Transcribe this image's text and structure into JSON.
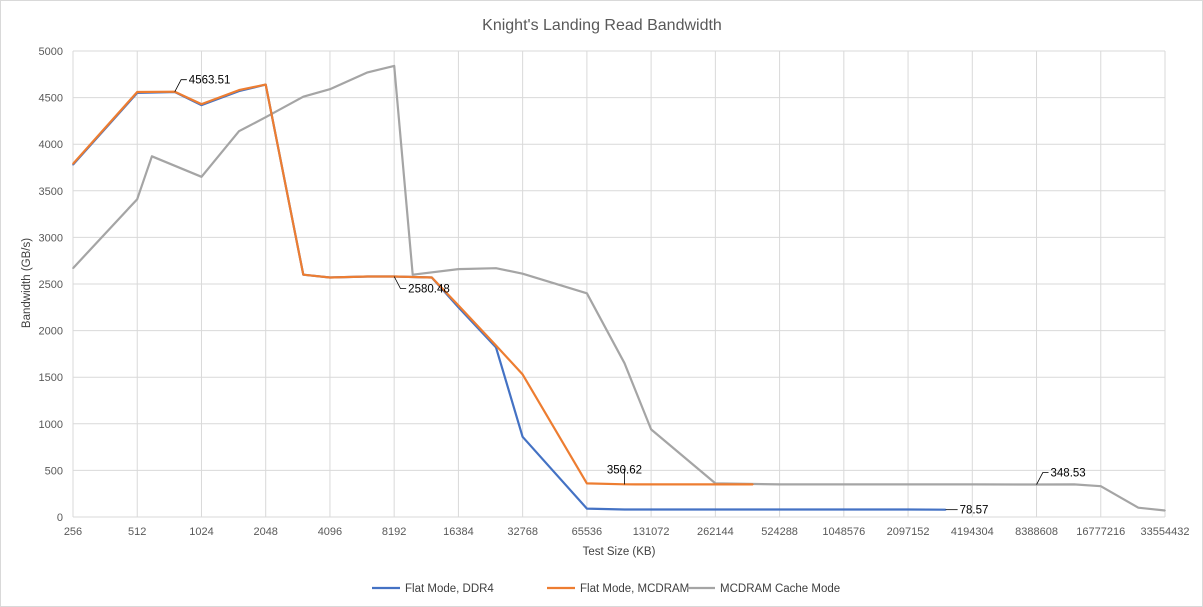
{
  "chart_data": {
    "type": "line",
    "title": "Knight's Landing Read Bandwidth",
    "xlabel": "Test Size (KB)",
    "ylabel": "Bandwidth (GB/s)",
    "x_scale": "log2",
    "xlim": [
      256,
      33554432
    ],
    "ylim": [
      0,
      5000
    ],
    "grid": true,
    "legend_position": "bottom",
    "x_ticks": [
      "256",
      "512",
      "1024",
      "2048",
      "4096",
      "8192",
      "16384",
      "32768",
      "65536",
      "131072",
      "262144",
      "524288",
      "1048576",
      "2097152",
      "4194304",
      "8388608",
      "16777216",
      "33554432"
    ],
    "y_ticks": [
      "0",
      "500",
      "1000",
      "1500",
      "2000",
      "2500",
      "3000",
      "3500",
      "4000",
      "4500",
      "5000"
    ],
    "series": [
      {
        "name": "Flat Mode, DDR4",
        "color": "#4472c4",
        "x": [
          256,
          512,
          768,
          1024,
          1536,
          2048,
          3072,
          4096,
          6144,
          8192,
          12288,
          16384,
          24576,
          32768,
          65536,
          98304,
          131072,
          196608,
          262144,
          393216,
          524288,
          786432,
          1048576,
          1572864,
          2097152,
          3145728
        ],
        "y": [
          3780,
          4550,
          4560,
          4420,
          4570,
          4640,
          2600,
          2570,
          2580,
          2580,
          2570,
          2250,
          1820,
          860,
          90,
          80,
          80,
          80,
          80,
          80,
          80,
          80,
          80,
          80,
          80,
          78.57
        ]
      },
      {
        "name": "Flat Mode, MCDRAM",
        "color": "#ed7d31",
        "x": [
          256,
          512,
          768,
          1024,
          1536,
          2048,
          3072,
          4096,
          6144,
          8192,
          12288,
          16384,
          24576,
          32768,
          65536,
          98304,
          131072,
          196608,
          262144,
          393216
        ],
        "y": [
          3790,
          4560,
          4563.51,
          4430,
          4580,
          4640,
          2600,
          2570,
          2580,
          2580.48,
          2570,
          2270,
          1840,
          1530,
          360,
          350.62,
          350,
          350,
          350,
          350
        ]
      },
      {
        "name": "MCDRAM Cache Mode",
        "color": "#a5a5a5",
        "x": [
          256,
          512,
          600,
          1024,
          1536,
          2048,
          3072,
          4096,
          6144,
          8192,
          10000,
          16384,
          24576,
          32768,
          65536,
          98304,
          131072,
          262144,
          524288,
          1048576,
          2097152,
          4194304,
          8388608,
          12582912,
          16777216,
          25165824,
          33554432
        ],
        "y": [
          2670,
          3410,
          3870,
          3650,
          4140,
          4290,
          4510,
          4590,
          4770,
          4840,
          2600,
          2660,
          2670,
          2610,
          2400,
          1650,
          940,
          360,
          350,
          350,
          350,
          350,
          348.53,
          350,
          330,
          100,
          70
        ]
      }
    ],
    "annotations": [
      {
        "series": "Flat Mode, MCDRAM",
        "x": 768,
        "y": 4563.51,
        "text": "4563.51"
      },
      {
        "series": "Flat Mode, MCDRAM",
        "x": 8192,
        "y": 2580.48,
        "text": "2580.48"
      },
      {
        "series": "Flat Mode, MCDRAM",
        "x": 98304,
        "y": 350.62,
        "text": "350.62"
      },
      {
        "series": "Flat Mode, DDR4",
        "x": 3145728,
        "y": 78.57,
        "text": "78.57"
      },
      {
        "series": "MCDRAM Cache Mode",
        "x": 8388608,
        "y": 348.53,
        "text": "348.53"
      }
    ]
  }
}
